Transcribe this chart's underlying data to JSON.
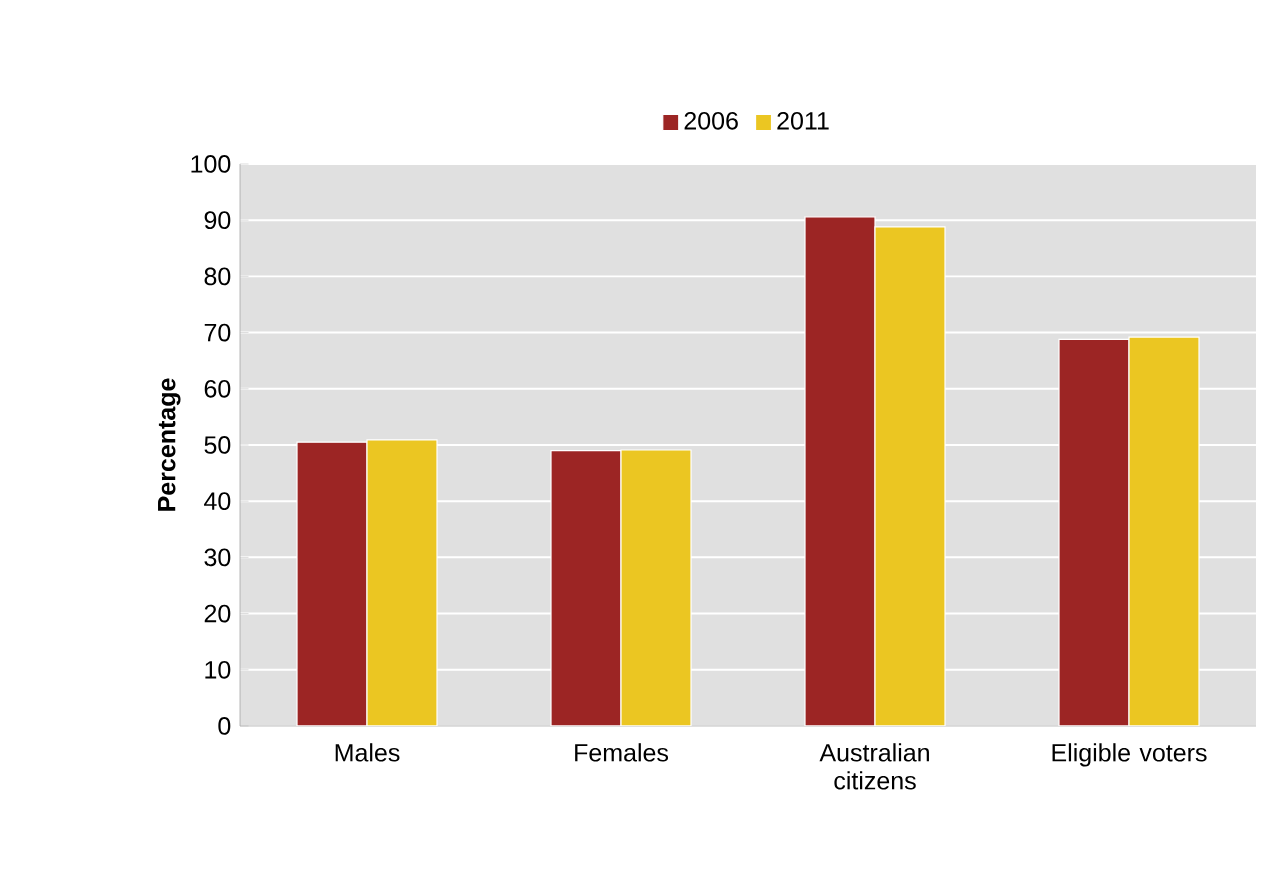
{
  "chart_data": {
    "type": "bar",
    "ylabel": "Percentage",
    "categories": [
      "Males",
      "Females",
      "Australian citizens",
      "Eligible voters"
    ],
    "series": [
      {
        "name": "2006",
        "color": "#9c2524",
        "values": [
          50.5,
          49.0,
          90.6,
          68.8
        ]
      },
      {
        "name": "2011",
        "color": "#ebc622",
        "values": [
          50.9,
          49.1,
          88.8,
          69.2
        ]
      }
    ],
    "ylim": [
      0,
      100
    ],
    "yticks": [
      0,
      10,
      20,
      30,
      40,
      50,
      60,
      70,
      80,
      90,
      100
    ],
    "grid": "y",
    "legend": "top"
  }
}
